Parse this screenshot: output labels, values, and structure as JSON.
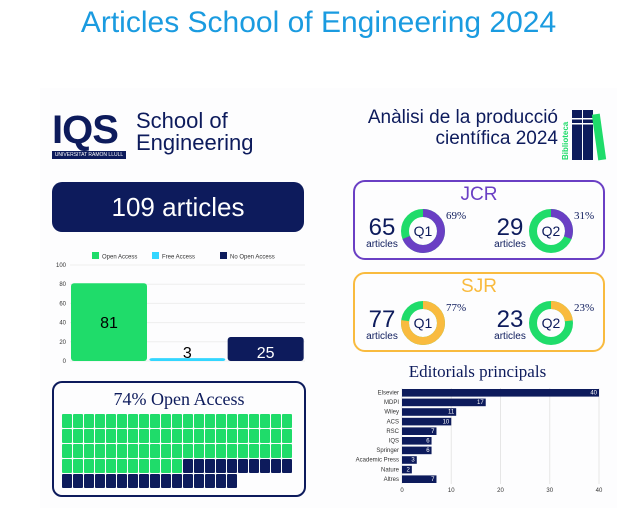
{
  "title": "Articles School of Engineering 2024",
  "logo": {
    "mark": "IQS",
    "tagline": "UNIVERSITAT RAMON LLULL",
    "school_line1": "School of",
    "school_line2": "Engineering"
  },
  "total_label": "109 articles",
  "header_right": {
    "line1": "Anàlisi de la producció",
    "line2": "científica 2024",
    "library_label": "Biblioteca"
  },
  "waffle": {
    "title": "74% Open Access",
    "open": 74,
    "closed": 26,
    "colors": {
      "open": "#1fdc6a",
      "closed": "#0d1b5c"
    }
  },
  "jcr": {
    "title": "JCR",
    "color": "#6a3fc4",
    "items": [
      {
        "count": "65",
        "label": "articles",
        "quartile": "Q1",
        "pct": "69%",
        "value": 69
      },
      {
        "count": "29",
        "label": "articles",
        "quartile": "Q2",
        "pct": "31%",
        "value": 31
      }
    ]
  },
  "sjr": {
    "title": "SJR",
    "color": "#f9bb3f",
    "items": [
      {
        "count": "77",
        "label": "articles",
        "quartile": "Q1",
        "pct": "77%",
        "value": 77
      },
      {
        "count": "23",
        "label": "articles",
        "quartile": "Q2",
        "pct": "23%",
        "value": 23
      }
    ]
  },
  "editorials_title": "Editorials principals",
  "chart_data": [
    {
      "type": "bar",
      "title": "",
      "categories": [
        "Open Access",
        "Free Access",
        "No Open Access"
      ],
      "values": [
        81,
        3,
        25
      ],
      "colors": [
        "#1fdc6a",
        "#33d6ff",
        "#0d1b5c"
      ],
      "ylim": [
        0,
        100
      ],
      "yticks": [
        0,
        20,
        40,
        60,
        80,
        100
      ],
      "legend": "top"
    },
    {
      "type": "bar",
      "orientation": "horizontal",
      "title": "Editorials principals",
      "categories": [
        "Elsevier",
        "MDPI",
        "Wiley",
        "ACS",
        "RSC",
        "IQS",
        "Springer",
        "Academic Press",
        "Nature",
        "Altres"
      ],
      "values": [
        40,
        17,
        11,
        10,
        7,
        6,
        6,
        3,
        2,
        7
      ],
      "xlim": [
        0,
        40
      ],
      "xticks": [
        0,
        10,
        20,
        30,
        40
      ],
      "color": "#0d1b5c"
    }
  ]
}
